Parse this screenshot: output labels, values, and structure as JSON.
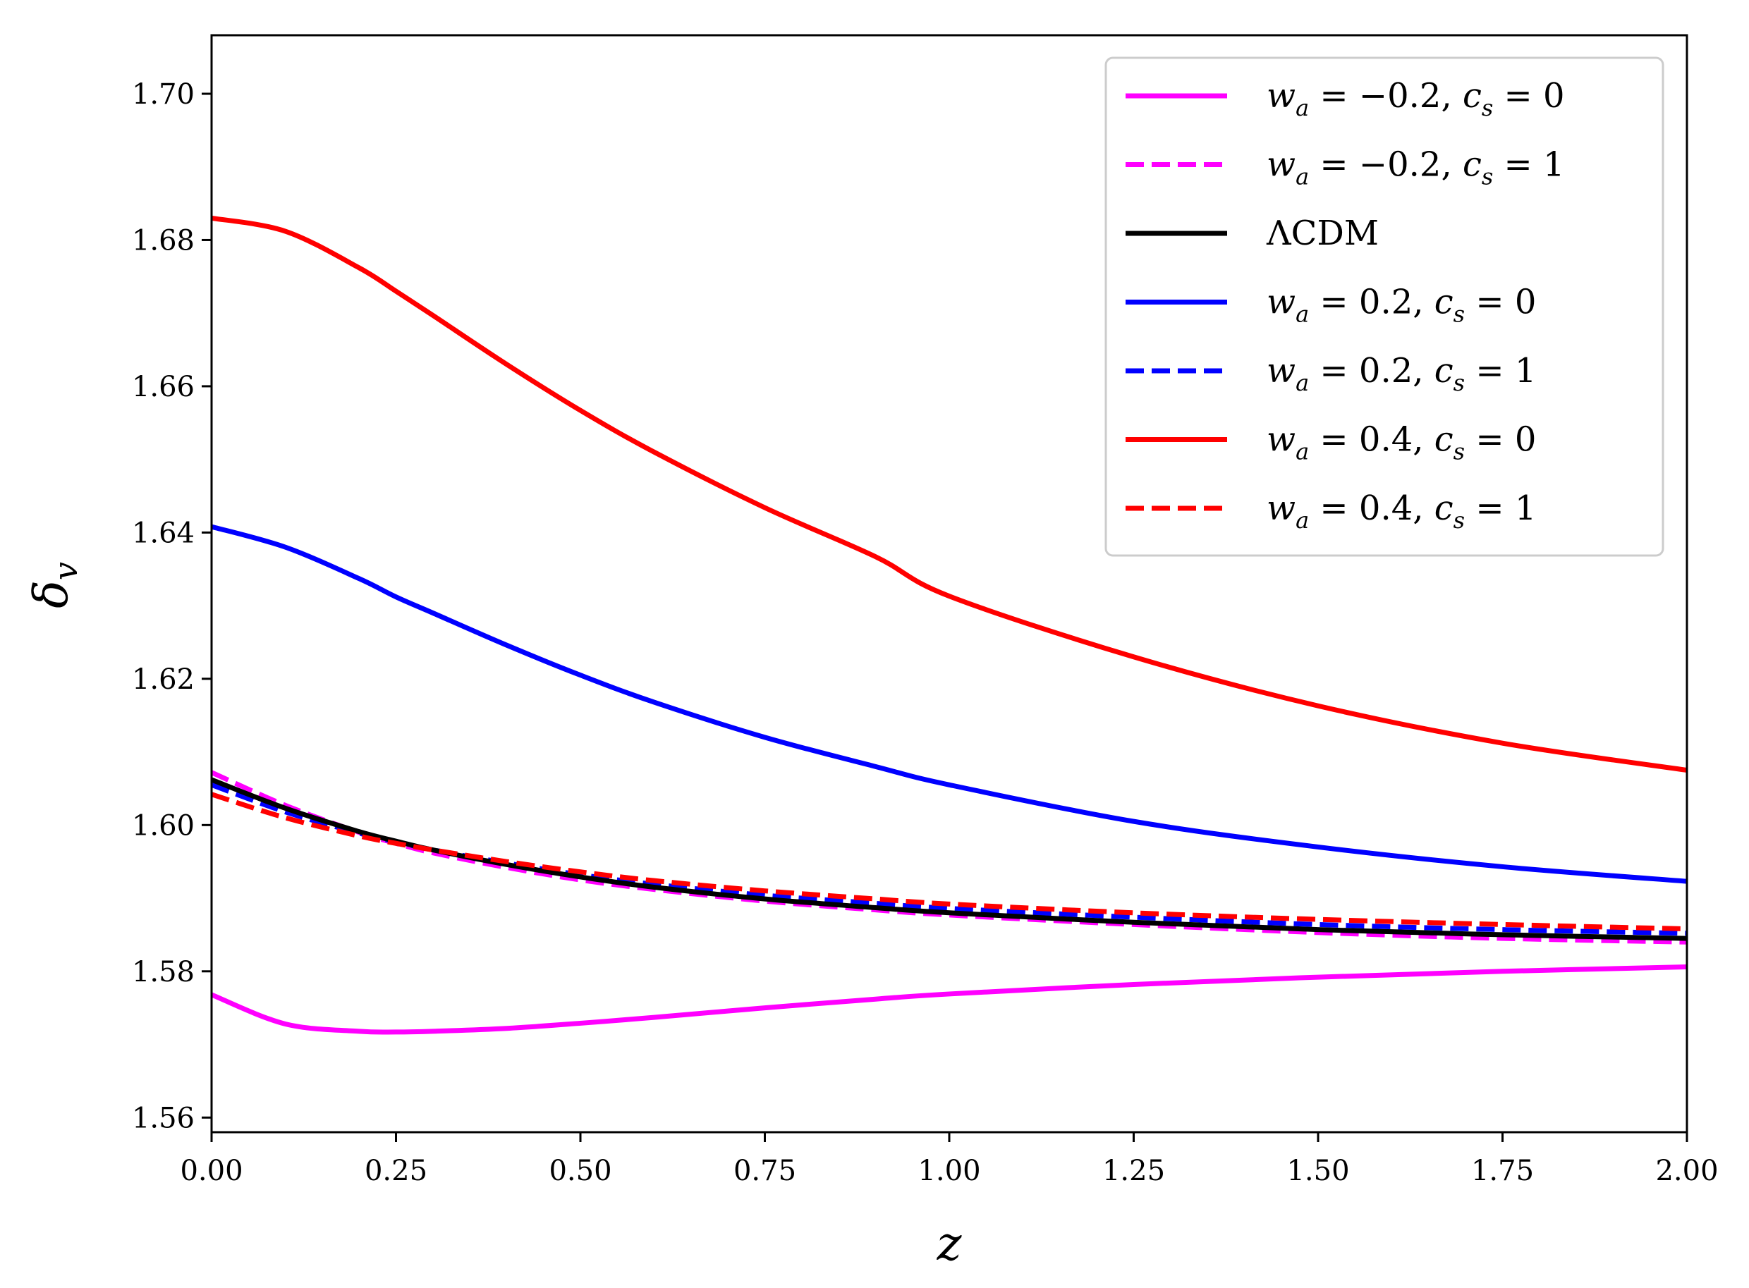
{
  "chart_data": {
    "type": "line",
    "title": "",
    "xlabel": "z",
    "ylabel": "δv",
    "xlim": [
      0.0,
      2.0
    ],
    "ylim": [
      1.558,
      1.708
    ],
    "grid": false,
    "legend_position": "top-right",
    "x_ticks": [
      0.0,
      0.25,
      0.5,
      0.75,
      1.0,
      1.25,
      1.5,
      1.75,
      2.0
    ],
    "x_tick_labels": [
      "0.00",
      "0.25",
      "0.50",
      "0.75",
      "1.00",
      "1.25",
      "1.50",
      "1.75",
      "2.00"
    ],
    "y_ticks": [
      1.56,
      1.58,
      1.6,
      1.62,
      1.64,
      1.66,
      1.68,
      1.7
    ],
    "y_tick_labels": [
      "1.56",
      "1.58",
      "1.60",
      "1.62",
      "1.64",
      "1.66",
      "1.68",
      "1.70"
    ],
    "x": [
      0.0,
      0.1,
      0.2,
      0.25,
      0.3,
      0.4,
      0.5,
      0.6,
      0.75,
      0.9,
      1.0,
      1.25,
      1.5,
      1.75,
      2.0
    ],
    "series": [
      {
        "name": "wa = −0.2, cs = 0",
        "color": "#ff00ff",
        "style": "solid",
        "values": [
          1.5768,
          1.5728,
          1.5718,
          1.5717,
          1.5718,
          1.5722,
          1.5729,
          1.5737,
          1.575,
          1.5762,
          1.5769,
          1.5782,
          1.5792,
          1.58,
          1.5806
        ]
      },
      {
        "name": "wa = −0.2, cs = 1",
        "color": "#ff00ff",
        "style": "dashed",
        "values": [
          1.6072,
          1.6027,
          1.599,
          1.5975,
          1.5962,
          1.5942,
          1.5925,
          1.5912,
          1.5896,
          1.5884,
          1.5877,
          1.5864,
          1.5853,
          1.5845,
          1.584
        ]
      },
      {
        "name": "ΛCDM",
        "color": "#000000",
        "style": "solid",
        "values": [
          1.6062,
          1.6023,
          1.5991,
          1.5978,
          1.5966,
          1.5946,
          1.5929,
          1.5915,
          1.5899,
          1.5887,
          1.588,
          1.5867,
          1.5857,
          1.585,
          1.5845
        ]
      },
      {
        "name": "wa = 0.2, cs = 0",
        "color": "#0000ff",
        "style": "solid",
        "values": [
          1.6408,
          1.638,
          1.6337,
          1.6312,
          1.629,
          1.6246,
          1.6205,
          1.6168,
          1.612,
          1.608,
          1.6055,
          1.6005,
          1.597,
          1.5943,
          1.5923
        ]
      },
      {
        "name": "wa = 0.2, cs = 1",
        "color": "#0000ff",
        "style": "dashed",
        "values": [
          1.6055,
          1.6018,
          1.5989,
          1.5977,
          1.5966,
          1.5948,
          1.5932,
          1.5919,
          1.5904,
          1.5893,
          1.5886,
          1.5874,
          1.5864,
          1.5857,
          1.5852
        ]
      },
      {
        "name": "wa = 0.4, cs = 0",
        "color": "#ff0000",
        "style": "solid",
        "values": [
          1.683,
          1.6812,
          1.6762,
          1.673,
          1.6697,
          1.663,
          1.6567,
          1.651,
          1.6434,
          1.6367,
          1.6313,
          1.623,
          1.6163,
          1.6112,
          1.6075
        ]
      },
      {
        "name": "wa = 0.4, cs = 1",
        "color": "#ff0000",
        "style": "dashed",
        "values": [
          1.6042,
          1.601,
          1.5985,
          1.5975,
          1.5966,
          1.595,
          1.5936,
          1.5924,
          1.591,
          1.5899,
          1.5892,
          1.588,
          1.5871,
          1.5864,
          1.5858
        ]
      }
    ]
  },
  "legend": [
    {
      "pre": "w",
      "sub1": "a",
      "mid": " = −0.2, c",
      "sub2": "s",
      "post": " = 0"
    },
    {
      "pre": "w",
      "sub1": "a",
      "mid": " = −0.2, c",
      "sub2": "s",
      "post": " = 1"
    },
    {
      "pre": "ΛCDM",
      "sub1": "",
      "mid": "",
      "sub2": "",
      "post": ""
    },
    {
      "pre": "w",
      "sub1": "a",
      "mid": " = 0.2, c",
      "sub2": "s",
      "post": " = 0"
    },
    {
      "pre": "w",
      "sub1": "a",
      "mid": " = 0.2, c",
      "sub2": "s",
      "post": " = 1"
    },
    {
      "pre": "w",
      "sub1": "a",
      "mid": " = 0.4, c",
      "sub2": "s",
      "post": " = 0"
    },
    {
      "pre": "w",
      "sub1": "a",
      "mid": " = 0.4, c",
      "sub2": "s",
      "post": " = 1"
    }
  ],
  "labels": {
    "x_axis": "z",
    "y_axis_main": "δ",
    "y_axis_sub": "v"
  }
}
